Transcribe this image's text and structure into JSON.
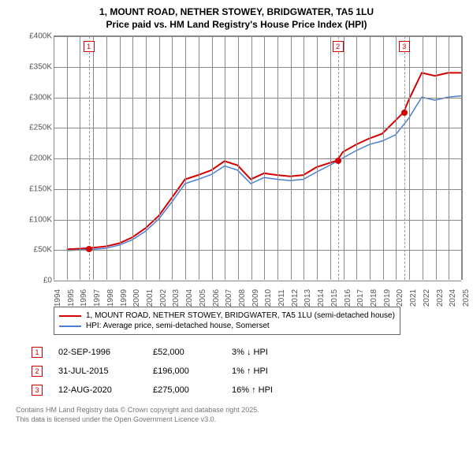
{
  "title_line1": "1, MOUNT ROAD, NETHER STOWEY, BRIDGWATER, TA5 1LU",
  "title_line2": "Price paid vs. HM Land Registry's House Price Index (HPI)",
  "chart": {
    "type": "line",
    "y_axis": {
      "min": 0,
      "max": 400000,
      "tick_step": 50000,
      "ticks": [
        "£0",
        "£50K",
        "£100K",
        "£150K",
        "£200K",
        "£250K",
        "£300K",
        "£350K",
        "£400K"
      ],
      "label_color": "#555",
      "label_fontsize": 10
    },
    "x_axis": {
      "years": [
        1994,
        1995,
        1996,
        1997,
        1998,
        1999,
        2000,
        2001,
        2002,
        2003,
        2004,
        2005,
        2006,
        2007,
        2008,
        2009,
        2010,
        2011,
        2012,
        2013,
        2014,
        2015,
        2016,
        2017,
        2018,
        2019,
        2020,
        2021,
        2022,
        2023,
        2024,
        2025
      ],
      "label_color": "#555",
      "label_fontsize": 10
    },
    "grid_color": "#888888",
    "background_color": "#ffffff",
    "series": [
      {
        "name": "property",
        "color": "#d40000",
        "width": 2,
        "x": [
          1995,
          1996.67,
          1998,
          1999,
          2000,
          2001,
          2002,
          2003,
          2004,
          2005,
          2006,
          2007,
          2008,
          2009,
          2010,
          2011,
          2012,
          2013,
          2014,
          2015.58,
          2016,
          2017,
          2018,
          2019,
          2020.62,
          2021,
          2022,
          2023,
          2024,
          2025
        ],
        "y": [
          50000,
          52000,
          55000,
          60000,
          70000,
          85000,
          105000,
          135000,
          165000,
          172000,
          180000,
          195000,
          188000,
          165000,
          175000,
          172000,
          170000,
          172000,
          185000,
          196000,
          210000,
          222000,
          232000,
          240000,
          275000,
          295000,
          340000,
          335000,
          340000,
          340000
        ]
      },
      {
        "name": "hpi",
        "color": "#4a7fd4",
        "width": 1.5,
        "x": [
          1995,
          1997,
          1998,
          1999,
          2000,
          2001,
          2002,
          2003,
          2004,
          2005,
          2006,
          2007,
          2008,
          2009,
          2010,
          2011,
          2012,
          2013,
          2014,
          2015,
          2016,
          2017,
          2018,
          2019,
          2020,
          2021,
          2022,
          2023,
          2024,
          2025
        ],
        "y": [
          48000,
          50000,
          52000,
          57000,
          66000,
          80000,
          100000,
          128000,
          158000,
          165000,
          173000,
          187000,
          180000,
          158000,
          168000,
          165000,
          163000,
          165000,
          177000,
          188000,
          200000,
          212000,
          222000,
          228000,
          238000,
          265000,
          300000,
          295000,
          300000,
          302000
        ]
      }
    ],
    "markers": [
      {
        "num": "1",
        "year": 1996.67,
        "price": 52000,
        "color": "#d40000"
      },
      {
        "num": "2",
        "year": 2015.58,
        "price": 196000,
        "color": "#d40000"
      },
      {
        "num": "3",
        "year": 2020.62,
        "price": 275000,
        "color": "#d40000"
      }
    ],
    "marker_line_color": "#999999"
  },
  "legend": {
    "items": [
      {
        "color": "#d40000",
        "label": "1, MOUNT ROAD, NETHER STOWEY, BRIDGWATER, TA5 1LU (semi-detached house)"
      },
      {
        "color": "#4a7fd4",
        "label": "HPI: Average price, semi-detached house, Somerset"
      }
    ]
  },
  "transactions": [
    {
      "num": "1",
      "color": "#d40000",
      "date": "02-SEP-1996",
      "price": "£52,000",
      "delta": "3% ↓ HPI"
    },
    {
      "num": "2",
      "color": "#d40000",
      "date": "31-JUL-2015",
      "price": "£196,000",
      "delta": "1% ↑ HPI"
    },
    {
      "num": "3",
      "color": "#d40000",
      "date": "12-AUG-2020",
      "price": "£275,000",
      "delta": "16% ↑ HPI"
    }
  ],
  "footer": {
    "line1": "Contains HM Land Registry data © Crown copyright and database right 2025.",
    "line2": "This data is licensed under the Open Government Licence v3.0."
  }
}
